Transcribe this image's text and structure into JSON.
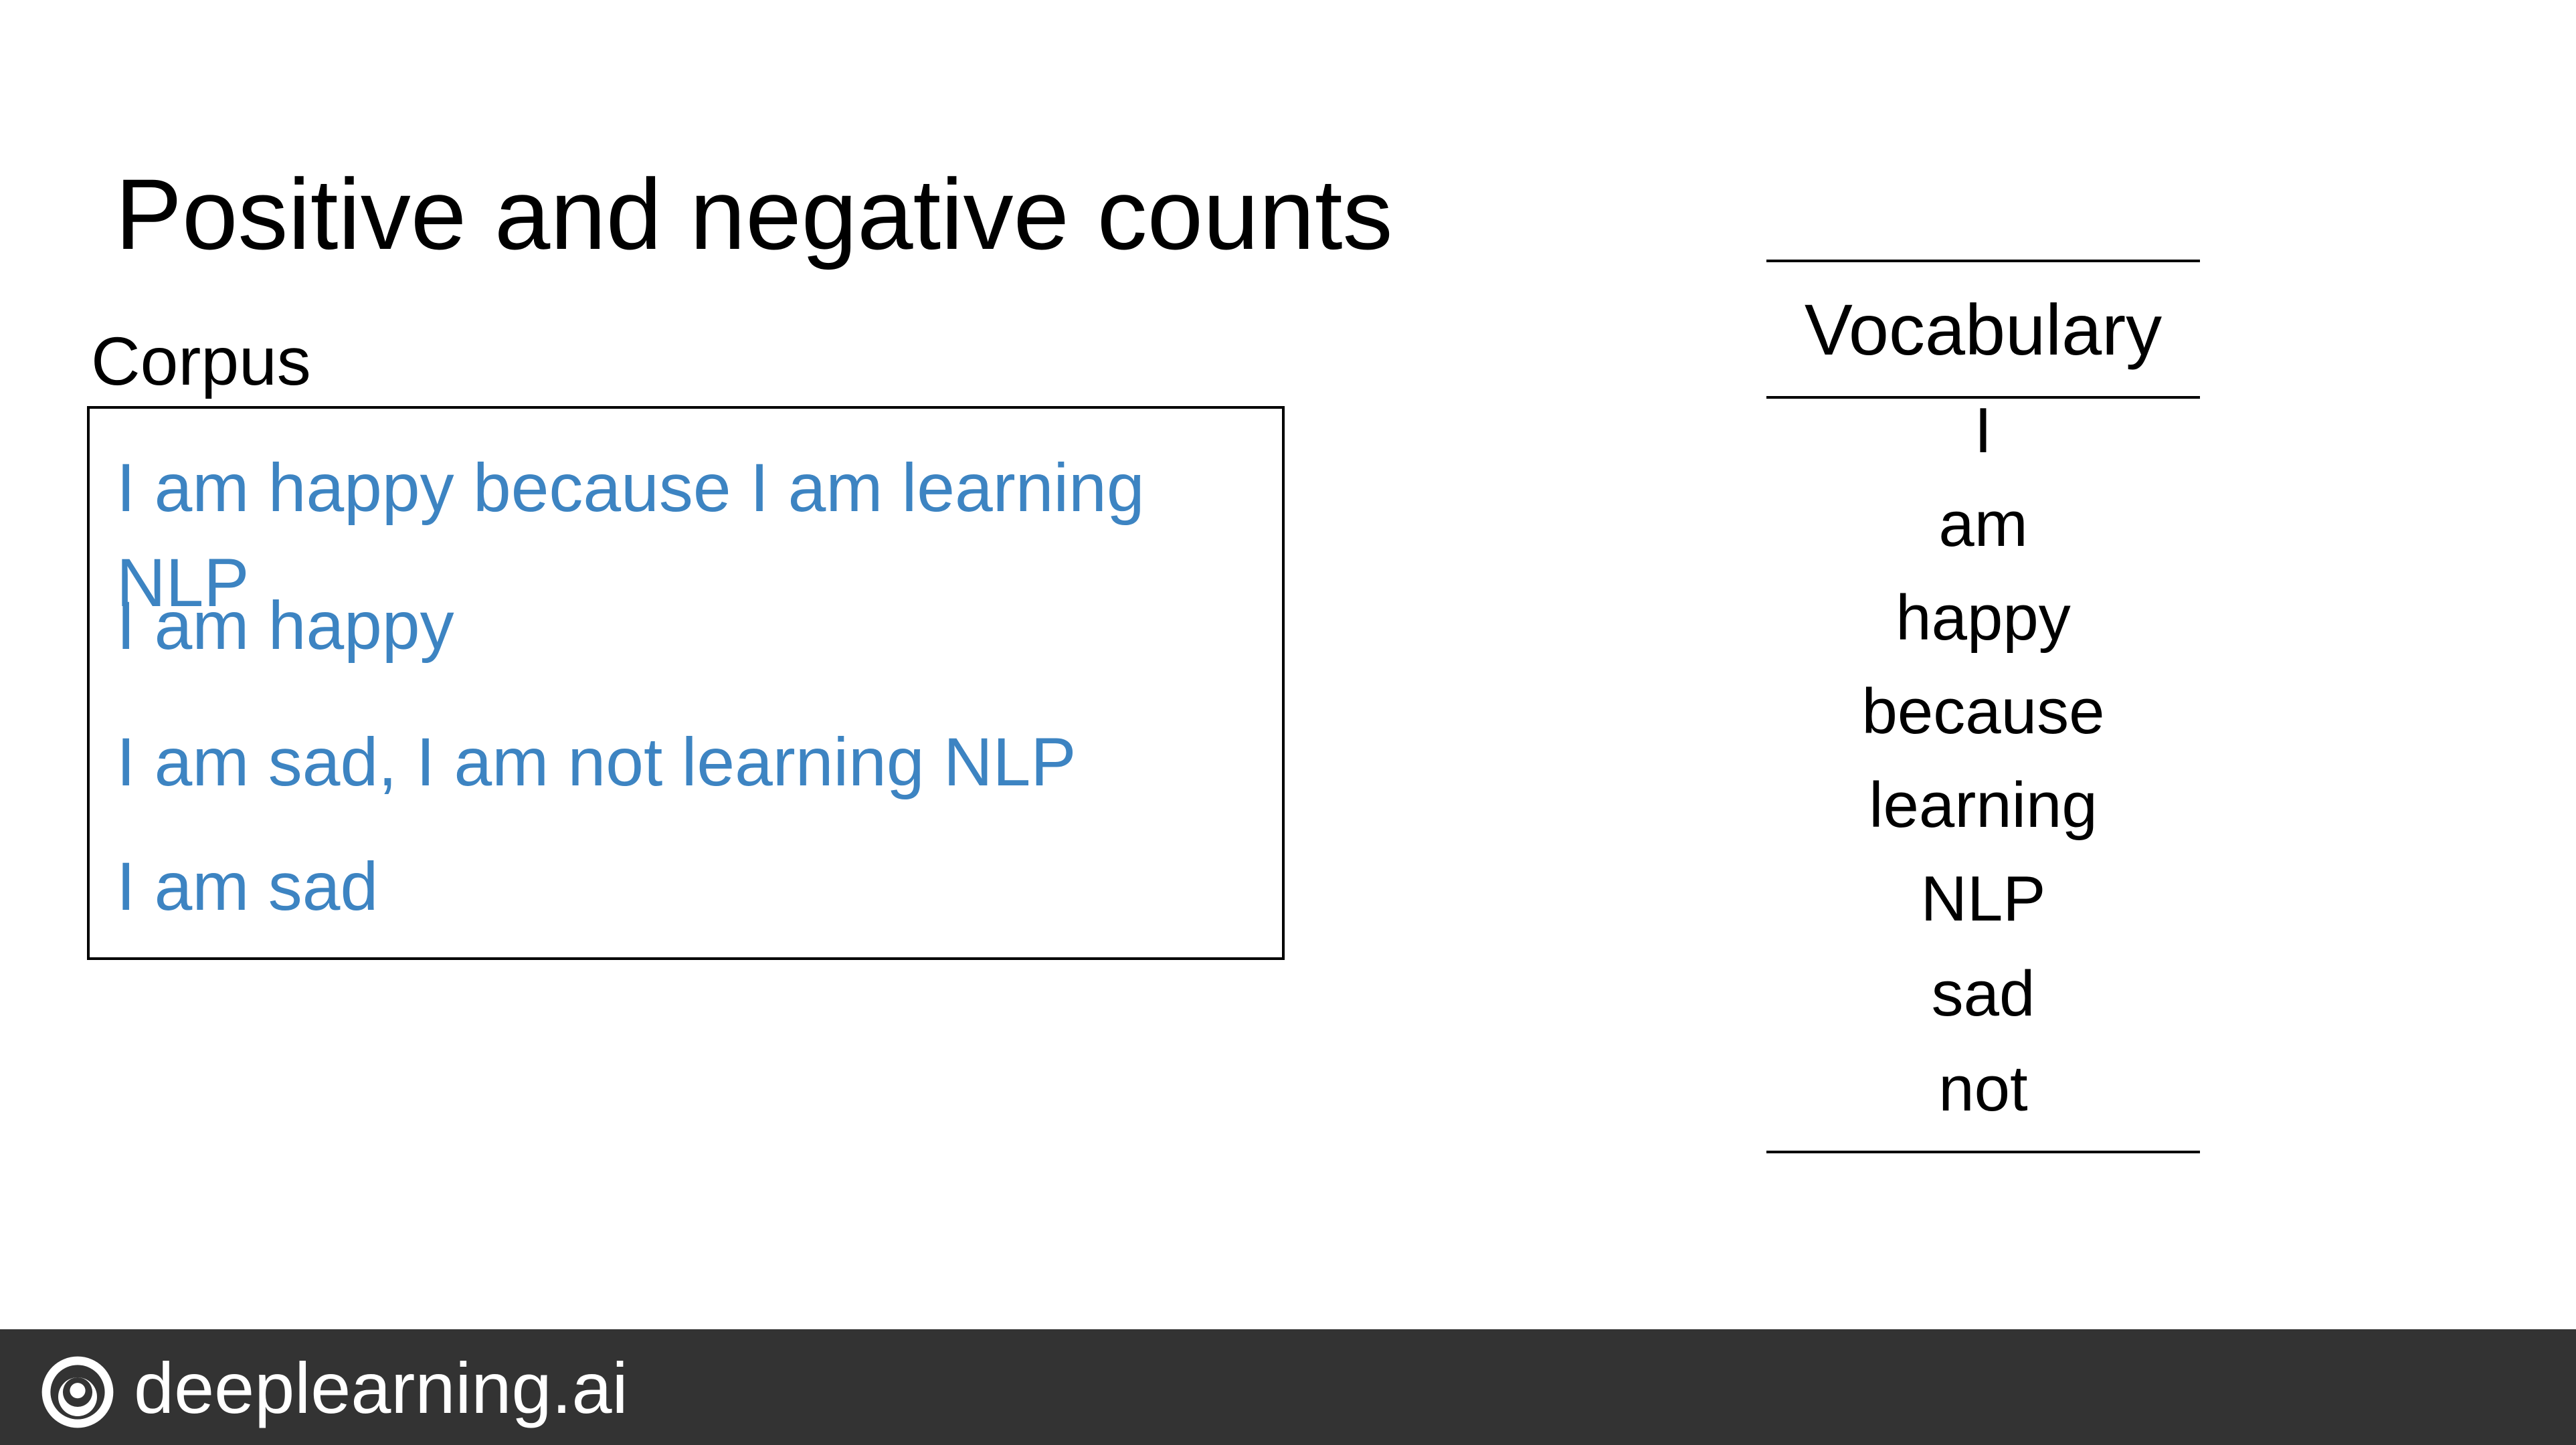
{
  "slide": {
    "title": "Positive and negative counts"
  },
  "corpus": {
    "label": "Corpus",
    "sentences": [
      "I am happy because I am learning NLP",
      "I am happy",
      "I am sad, I am not learning NLP",
      "I am sad"
    ]
  },
  "vocabulary": {
    "header": "Vocabulary",
    "words": [
      "I",
      "am",
      "happy",
      "because",
      "learning",
      "NLP",
      "sad",
      "not"
    ]
  },
  "footer": {
    "brand": "deeplearning.ai",
    "logo_icon": "deeplearning-ai-logo-icon"
  },
  "colors": {
    "corpus_text": "#3d84c2",
    "footer_background": "#333333"
  }
}
